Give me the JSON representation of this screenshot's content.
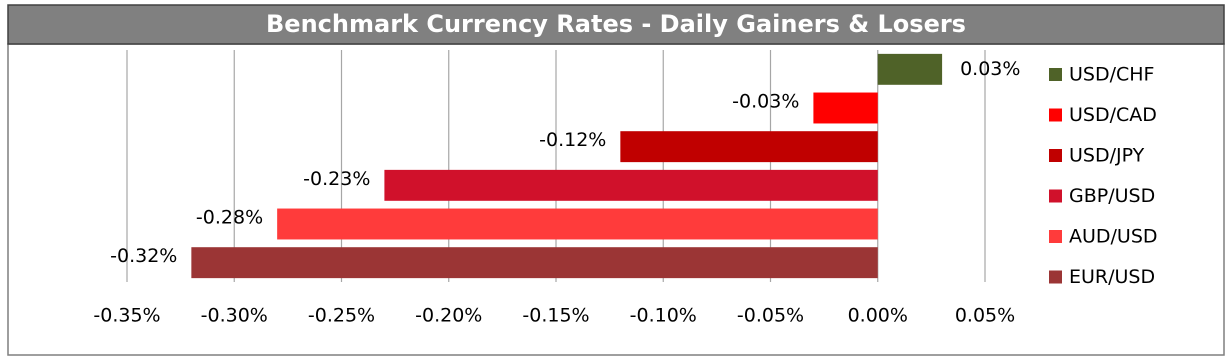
{
  "chart_data": {
    "type": "bar",
    "orientation": "horizontal",
    "title": "Benchmark Currency Rates - Daily Gainers & Losers",
    "categories": [
      "USD/CHF",
      "USD/CAD",
      "USD/JPY",
      "GBP/USD",
      "AUD/USD",
      "EUR/USD"
    ],
    "values": [
      0.03,
      -0.03,
      -0.12,
      -0.23,
      -0.28,
      -0.32
    ],
    "value_labels": [
      "0.03%",
      "-0.03%",
      "-0.12%",
      "-0.23%",
      "-0.28%",
      "-0.32%"
    ],
    "colors": [
      "#4f6228",
      "#ff0000",
      "#c00000",
      "#d0112b",
      "#ff3b3b",
      "#9b3535"
    ],
    "xlim": [
      -0.35,
      0.05
    ],
    "xticks": [
      {
        "value": -0.35,
        "label": "-0.35%"
      },
      {
        "value": -0.3,
        "label": "-0.30%"
      },
      {
        "value": -0.25,
        "label": "-0.25%"
      },
      {
        "value": -0.2,
        "label": "-0.20%"
      },
      {
        "value": -0.15,
        "label": "-0.15%"
      },
      {
        "value": -0.1,
        "label": "-0.10%"
      },
      {
        "value": -0.05,
        "label": "-0.05%"
      },
      {
        "value": 0,
        "label": "0.00%"
      },
      {
        "value": 0.05,
        "label": "0.05%"
      }
    ],
    "grid": true,
    "legend": "right"
  }
}
